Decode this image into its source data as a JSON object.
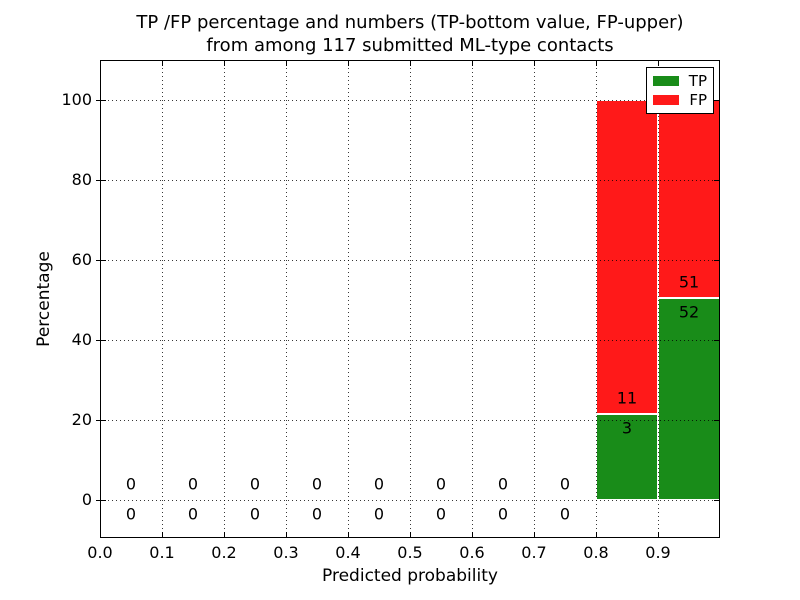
{
  "title": {
    "line1": "TP /FP percentage and numbers (TP-bottom value, FP-upper)",
    "line2": "from among 117 submitted ML-type contacts"
  },
  "axes": {
    "xlabel": "Predicted probability",
    "ylabel": "Percentage"
  },
  "legend": {
    "items": [
      {
        "label": "TP",
        "color": "#198c19"
      },
      {
        "label": "FP",
        "color": "#ff1919"
      }
    ]
  },
  "chart_data": {
    "type": "bar",
    "stacked": true,
    "title": "TP /FP percentage and numbers (TP-bottom value, FP-upper) from among 117 submitted ML-type contacts",
    "xlabel": "Predicted probability",
    "ylabel": "Percentage",
    "total_contacts": 117,
    "bin_width": 0.1,
    "x_tick_values": [
      0.0,
      0.1,
      0.2,
      0.3,
      0.4,
      0.5,
      0.6,
      0.7,
      0.8,
      0.9
    ],
    "x_tick_labels": [
      "0.0",
      "0.1",
      "0.2",
      "0.3",
      "0.4",
      "0.5",
      "0.6",
      "0.7",
      "0.8",
      "0.9"
    ],
    "y_tick_values": [
      0,
      20,
      40,
      60,
      80,
      100
    ],
    "y_tick_labels": [
      "0",
      "20",
      "40",
      "60",
      "80",
      "100"
    ],
    "x_range": [
      0.0,
      1.0
    ],
    "y_range_shown": [
      -9.5,
      110
    ],
    "grid": "dotted, drawn above bars",
    "legend_position": "upper right",
    "colors": {
      "tp": "#198c19",
      "fp": "#ff1919",
      "bar_edge": "#ffffff"
    },
    "series_note": "TP is bottom segment of each stacked bar, FP is upper segment; labels show counts (FP above boundary, TP below)",
    "bins": [
      {
        "x0": 0.0,
        "x1": 0.1,
        "tp_count": 0,
        "fp_count": 0,
        "tp_pct": 0,
        "fp_pct": 0
      },
      {
        "x0": 0.1,
        "x1": 0.2,
        "tp_count": 0,
        "fp_count": 0,
        "tp_pct": 0,
        "fp_pct": 0
      },
      {
        "x0": 0.2,
        "x1": 0.3,
        "tp_count": 0,
        "fp_count": 0,
        "tp_pct": 0,
        "fp_pct": 0
      },
      {
        "x0": 0.3,
        "x1": 0.4,
        "tp_count": 0,
        "fp_count": 0,
        "tp_pct": 0,
        "fp_pct": 0
      },
      {
        "x0": 0.4,
        "x1": 0.5,
        "tp_count": 0,
        "fp_count": 0,
        "tp_pct": 0,
        "fp_pct": 0
      },
      {
        "x0": 0.5,
        "x1": 0.6,
        "tp_count": 0,
        "fp_count": 0,
        "tp_pct": 0,
        "fp_pct": 0
      },
      {
        "x0": 0.6,
        "x1": 0.7,
        "tp_count": 0,
        "fp_count": 0,
        "tp_pct": 0,
        "fp_pct": 0
      },
      {
        "x0": 0.7,
        "x1": 0.8,
        "tp_count": 0,
        "fp_count": 0,
        "tp_pct": 0,
        "fp_pct": 0
      },
      {
        "x0": 0.8,
        "x1": 0.9,
        "tp_count": 3,
        "fp_count": 11,
        "tp_pct": 21.43,
        "fp_pct": 78.57
      },
      {
        "x0": 0.9,
        "x1": 1.0,
        "tp_count": 52,
        "fp_count": 51,
        "tp_pct": 50.49,
        "fp_pct": 49.51
      }
    ]
  }
}
